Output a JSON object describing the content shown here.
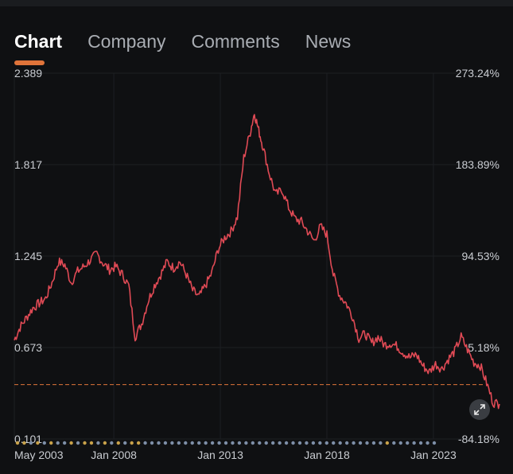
{
  "tabs": [
    {
      "label": "Chart",
      "active": true
    },
    {
      "label": "Company",
      "active": false
    },
    {
      "label": "Comments",
      "active": false
    },
    {
      "label": "News",
      "active": false
    }
  ],
  "colors": {
    "line": "#e04a55",
    "accent": "#e0743a",
    "dot_blue": "#7e8fa8",
    "dot_yellow": "#c9a24a"
  },
  "expand_icon": "expand-arrows-icon",
  "chart_data": {
    "type": "line",
    "title": "",
    "xlabel": "",
    "ylabel": "",
    "ylim": [
      0.101,
      2.389
    ],
    "left_ticks": [
      "2.389",
      "1.817",
      "1.245",
      "0.673",
      "0.101"
    ],
    "right_ticks": [
      "273.24%",
      "183.89%",
      "94.53%",
      "5.18%",
      "-84.18%"
    ],
    "x_tick_labels": [
      "May 2003",
      "Jan 2008",
      "Jan 2013",
      "Jan 2018",
      "Jan 2023"
    ],
    "x_tick_years": [
      2003.33,
      2008.0,
      2013.0,
      2018.0,
      2023.0
    ],
    "xlim": [
      2003.33,
      2026.1
    ],
    "reference_value": 0.64,
    "grid": true,
    "series": [
      {
        "x": [
          2003.33,
          2003.6,
          2003.9,
          2004.2,
          2004.5,
          2004.8,
          2005.1,
          2005.4,
          2005.7,
          2006.0,
          2006.3,
          2006.6,
          2006.9,
          2007.2,
          2007.5,
          2007.8,
          2008.1,
          2008.4,
          2008.7,
          2009.0,
          2009.3,
          2009.6,
          2009.9,
          2010.2,
          2010.5,
          2010.8,
          2011.1,
          2011.4,
          2011.7,
          2012.0,
          2012.3,
          2012.6,
          2012.9,
          2013.2,
          2013.5,
          2013.8,
          2014.1,
          2014.4,
          2014.6,
          2014.8,
          2015.0,
          2015.3,
          2015.6,
          2015.9,
          2016.2,
          2016.5,
          2016.8,
          2017.1,
          2017.4,
          2017.7,
          2018.0,
          2018.3,
          2018.6,
          2018.9,
          2019.2,
          2019.5,
          2019.8,
          2020.1,
          2020.4,
          2020.7,
          2021.0,
          2021.3,
          2021.6,
          2021.9,
          2022.2,
          2022.5,
          2022.8,
          2023.1,
          2023.4,
          2023.7,
          2024.0,
          2024.3,
          2024.6,
          2024.9,
          2025.2,
          2025.5,
          2025.8,
          2026.1
        ],
        "y": [
          0.72,
          0.8,
          0.86,
          0.92,
          0.95,
          0.98,
          1.08,
          1.21,
          1.19,
          1.08,
          1.15,
          1.18,
          1.22,
          1.26,
          1.2,
          1.16,
          1.18,
          1.13,
          1.06,
          0.74,
          0.82,
          0.96,
          1.06,
          1.13,
          1.21,
          1.17,
          1.21,
          1.13,
          1.03,
          0.99,
          1.06,
          1.14,
          1.29,
          1.36,
          1.4,
          1.49,
          1.86,
          2.02,
          2.14,
          2.03,
          1.93,
          1.76,
          1.63,
          1.66,
          1.55,
          1.48,
          1.46,
          1.4,
          1.34,
          1.43,
          1.38,
          1.13,
          1.0,
          0.95,
          0.87,
          0.73,
          0.76,
          0.7,
          0.74,
          0.69,
          0.7,
          0.68,
          0.64,
          0.61,
          0.63,
          0.56,
          0.52,
          0.57,
          0.54,
          0.6,
          0.65,
          0.74,
          0.66,
          0.58,
          0.56,
          0.45,
          0.33,
          0.32
        ]
      }
    ],
    "event_markers": [
      "y",
      "y",
      "b",
      "y",
      "b",
      "y",
      "b",
      "b",
      "y",
      "b",
      "y",
      "y",
      "b",
      "y",
      "b",
      "y",
      "b",
      "y",
      "y",
      "b",
      "b",
      "b",
      "b",
      "b",
      "b",
      "b",
      "b",
      "b",
      "b",
      "b",
      "b",
      "b",
      "b",
      "b",
      "b",
      "b",
      "b",
      "b",
      "b",
      "b",
      "b",
      "b",
      "b",
      "b",
      "b",
      "b",
      "b",
      "b",
      "b",
      "b",
      "b",
      "b",
      "b",
      "b",
      "b",
      "y",
      "b",
      "b",
      "b",
      "b",
      "b",
      "b",
      "b"
    ]
  }
}
